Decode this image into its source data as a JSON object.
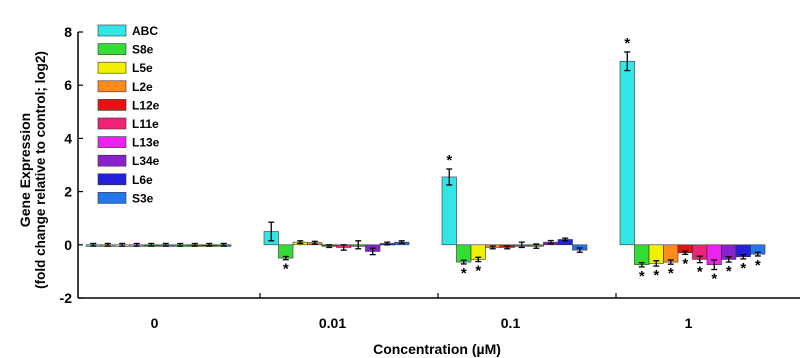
{
  "chart_data": {
    "type": "bar",
    "xlabel": "Concentration (µM)",
    "ylabel_line1": "Gene Expression",
    "ylabel_line2": "(fold change relative to control; log2)",
    "ylim": [
      -2,
      8
    ],
    "yticks": [
      "-2",
      "0",
      "2",
      "4",
      "6",
      "8"
    ],
    "categories": [
      "0",
      "0.01",
      "0.1",
      "1"
    ],
    "legend_position": "top-left",
    "grid": false,
    "series": [
      {
        "name": "ABC",
        "color": "#33e6e6",
        "values": [
          0.0,
          0.5,
          2.55,
          6.9
        ],
        "errors": [
          0.05,
          0.35,
          0.3,
          0.35
        ],
        "sig": [
          false,
          false,
          true,
          true
        ]
      },
      {
        "name": "S8e",
        "color": "#33dd33",
        "values": [
          0.0,
          -0.5,
          -0.65,
          -0.75
        ],
        "errors": [
          0.05,
          0.06,
          0.07,
          0.08
        ],
        "sig": [
          false,
          true,
          true,
          true
        ]
      },
      {
        "name": "L5e",
        "color": "#f0f000",
        "values": [
          0.0,
          0.1,
          -0.55,
          -0.7
        ],
        "errors": [
          0.05,
          0.05,
          0.08,
          0.1
        ],
        "sig": [
          false,
          false,
          true,
          true
        ]
      },
      {
        "name": "L2e",
        "color": "#ff8c1a",
        "values": [
          0.0,
          0.08,
          -0.1,
          -0.65
        ],
        "errors": [
          0.05,
          0.05,
          0.05,
          0.08
        ],
        "sig": [
          false,
          false,
          false,
          true
        ]
      },
      {
        "name": "L12e",
        "color": "#e01414",
        "values": [
          0.0,
          -0.05,
          -0.1,
          -0.3
        ],
        "errors": [
          0.05,
          0.05,
          0.05,
          0.06
        ],
        "sig": [
          false,
          false,
          false,
          true
        ]
      },
      {
        "name": "L11e",
        "color": "#ee2277",
        "values": [
          0.0,
          -0.1,
          0.0,
          -0.55
        ],
        "errors": [
          0.05,
          0.1,
          0.1,
          0.12
        ],
        "sig": [
          false,
          false,
          false,
          true
        ]
      },
      {
        "name": "L13e",
        "color": "#ee22ee",
        "values": [
          0.0,
          0.0,
          -0.05,
          -0.75
        ],
        "errors": [
          0.05,
          0.15,
          0.08,
          0.18
        ],
        "sig": [
          false,
          false,
          false,
          true
        ]
      },
      {
        "name": "L34e",
        "color": "#8822cc",
        "values": [
          0.0,
          -0.25,
          0.1,
          -0.55
        ],
        "errors": [
          0.05,
          0.12,
          0.06,
          0.1
        ],
        "sig": [
          false,
          false,
          false,
          true
        ]
      },
      {
        "name": "L6e",
        "color": "#2222dd",
        "values": [
          0.0,
          0.05,
          0.2,
          -0.45
        ],
        "errors": [
          0.05,
          0.05,
          0.05,
          0.08
        ],
        "sig": [
          false,
          false,
          false,
          true
        ]
      },
      {
        "name": "S3e",
        "color": "#2277ee",
        "values": [
          0.0,
          0.1,
          -0.2,
          -0.35
        ],
        "errors": [
          0.05,
          0.05,
          0.08,
          0.07
        ],
        "sig": [
          false,
          false,
          false,
          true
        ]
      }
    ],
    "significance_marker": "*"
  }
}
